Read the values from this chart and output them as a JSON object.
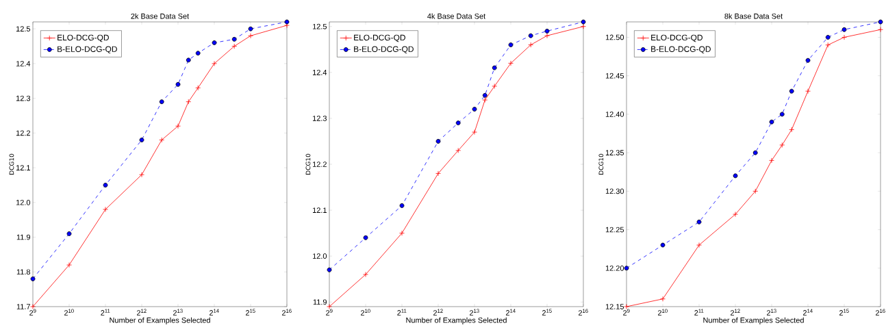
{
  "chart_data": [
    {
      "type": "line",
      "title": "2k Base Data Set",
      "xlabel": "Number of Examples Selected",
      "ylabel": "DCG10",
      "log": "x",
      "legend": "top left",
      "x": [
        512,
        1024,
        2048,
        4096,
        6000,
        8192,
        10000,
        12000,
        16384,
        24000,
        32768,
        65536
      ],
      "xlim": [
        512,
        65536
      ],
      "xticks": [
        {
          "value": 512,
          "label": "2$^{9}$"
        },
        {
          "value": 1024,
          "label": "2$^{10}$"
        },
        {
          "value": 2048,
          "label": "2$^{11}$"
        },
        {
          "value": 4096,
          "label": "2$^{12}$"
        },
        {
          "value": 8192,
          "label": "2$^{13}$"
        },
        {
          "value": 16384,
          "label": "2$^{14}$"
        },
        {
          "value": 32768,
          "label": "2$^{15}$"
        },
        {
          "value": 65536,
          "label": "2$^{16}$"
        }
      ],
      "ylim": [
        11.7,
        12.52
      ],
      "yticks": [
        {
          "value": 11.7,
          "label": "11.7"
        },
        {
          "value": 11.8,
          "label": "11.8"
        },
        {
          "value": 11.9,
          "label": "11.9"
        },
        {
          "value": 12.0,
          "label": "12.0"
        },
        {
          "value": 12.1,
          "label": "12.1"
        },
        {
          "value": 12.2,
          "label": "12.2"
        },
        {
          "value": 12.3,
          "label": "12.3"
        },
        {
          "value": 12.4,
          "label": "12.4"
        },
        {
          "value": 12.5,
          "label": "12.5"
        }
      ],
      "series": [
        {
          "name": "ELO-DCG-QD",
          "color": "#ff0000",
          "marker": "cross",
          "line_style": "solid",
          "values": [
            11.7,
            11.82,
            11.98,
            12.08,
            12.18,
            12.22,
            12.29,
            12.33,
            12.4,
            12.45,
            12.48,
            12.51
          ]
        },
        {
          "name": "B-ELO-DCG-QD",
          "color": "#0000ff",
          "marker": "circle",
          "line_style": "dashed",
          "values": [
            11.78,
            11.91,
            12.05,
            12.18,
            12.29,
            12.34,
            12.41,
            12.43,
            12.46,
            12.47,
            12.5,
            12.52
          ]
        }
      ]
    },
    {
      "type": "line",
      "title": "4k Base Data Set",
      "xlabel": "Number of Examples Selected",
      "ylabel": "DCG10",
      "log": "x",
      "legend": "top left",
      "x": [
        512,
        1024,
        2048,
        4096,
        6000,
        8192,
        10000,
        12000,
        16384,
        24000,
        32768,
        65536
      ],
      "xlim": [
        512,
        65536
      ],
      "xticks": [
        {
          "value": 512,
          "label": "2$^{9}$"
        },
        {
          "value": 1024,
          "label": "2$^{10}$"
        },
        {
          "value": 2048,
          "label": "2$^{11}$"
        },
        {
          "value": 4096,
          "label": "2$^{12}$"
        },
        {
          "value": 8192,
          "label": "2$^{13}$"
        },
        {
          "value": 16384,
          "label": "2$^{14}$"
        },
        {
          "value": 32768,
          "label": "2$^{15}$"
        },
        {
          "value": 65536,
          "label": "2$^{16}$"
        }
      ],
      "ylim": [
        11.89,
        12.51
      ],
      "yticks": [
        {
          "value": 11.9,
          "label": "11.9"
        },
        {
          "value": 12.0,
          "label": "12.0"
        },
        {
          "value": 12.1,
          "label": "12.1"
        },
        {
          "value": 12.2,
          "label": "12.2"
        },
        {
          "value": 12.3,
          "label": "12.3"
        },
        {
          "value": 12.4,
          "label": "12.4"
        },
        {
          "value": 12.5,
          "label": "12.5"
        }
      ],
      "series": [
        {
          "name": "ELO-DCG-QD",
          "color": "#ff0000",
          "marker": "cross",
          "line_style": "solid",
          "values": [
            11.89,
            11.96,
            12.05,
            12.18,
            12.23,
            12.27,
            12.34,
            12.37,
            12.42,
            12.46,
            12.48,
            12.5
          ]
        },
        {
          "name": "B-ELO-DCG-QD",
          "color": "#0000ff",
          "marker": "circle",
          "line_style": "dashed",
          "values": [
            11.97,
            12.04,
            12.11,
            12.25,
            12.29,
            12.32,
            12.35,
            12.41,
            12.46,
            12.48,
            12.49,
            12.51
          ]
        }
      ]
    },
    {
      "type": "line",
      "title": "8k Base Data Set",
      "xlabel": "Number of Examples Selected",
      "ylabel": "DCG10",
      "log": "x",
      "legend": "top left",
      "x": [
        512,
        1024,
        2048,
        4096,
        6000,
        8192,
        10000,
        12000,
        16384,
        24000,
        32768,
        65536
      ],
      "xlim": [
        512,
        65536
      ],
      "xticks": [
        {
          "value": 512,
          "label": "2$^{9}$"
        },
        {
          "value": 1024,
          "label": "2$^{10}$"
        },
        {
          "value": 2048,
          "label": "2$^{11}$"
        },
        {
          "value": 4096,
          "label": "2$^{12}$"
        },
        {
          "value": 8192,
          "label": "2$^{13}$"
        },
        {
          "value": 16384,
          "label": "2$^{14}$"
        },
        {
          "value": 32768,
          "label": "2$^{15}$"
        },
        {
          "value": 65536,
          "label": "2$^{16}$"
        }
      ],
      "ylim": [
        12.15,
        12.52
      ],
      "yticks": [
        {
          "value": 12.15,
          "label": "12.15"
        },
        {
          "value": 12.2,
          "label": "12.20"
        },
        {
          "value": 12.25,
          "label": "12.25"
        },
        {
          "value": 12.3,
          "label": "12.30"
        },
        {
          "value": 12.35,
          "label": "12.35"
        },
        {
          "value": 12.4,
          "label": "12.40"
        },
        {
          "value": 12.45,
          "label": "12.45"
        },
        {
          "value": 12.5,
          "label": "12.50"
        }
      ],
      "series": [
        {
          "name": "ELO-DCG-QD",
          "color": "#ff0000",
          "marker": "cross",
          "line_style": "solid",
          "values": [
            12.15,
            12.16,
            12.23,
            12.27,
            12.3,
            12.34,
            12.36,
            12.38,
            12.43,
            12.49,
            12.5,
            12.51
          ]
        },
        {
          "name": "B-ELO-DCG-QD",
          "color": "#0000ff",
          "marker": "circle",
          "line_style": "dashed",
          "values": [
            12.2,
            12.23,
            12.26,
            12.32,
            12.35,
            12.39,
            12.4,
            12.43,
            12.47,
            12.5,
            12.51,
            12.52
          ]
        }
      ]
    }
  ]
}
